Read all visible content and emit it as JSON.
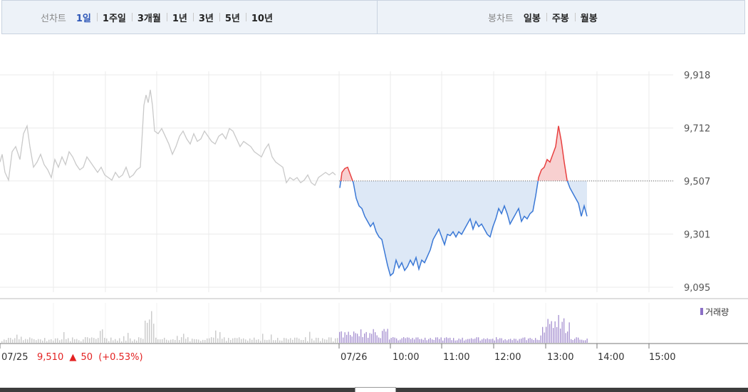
{
  "tabs": {
    "line_chart_label": "선차트",
    "periods": [
      "1일",
      "1주일",
      "3개월",
      "1년",
      "3년",
      "5년",
      "10년"
    ],
    "active_period": 0,
    "candle_chart_label": "봉차트",
    "candle_periods": [
      "일봉",
      "주봉",
      "월봉"
    ]
  },
  "chart_data": {
    "type": "line",
    "y_ticks": [
      "9,918",
      "9,712",
      "9,507",
      "9,301",
      "9,095"
    ],
    "ylim": [
      9095,
      9918
    ],
    "x_labels": [
      "07/25",
      "07/26",
      "10:00",
      "11:00",
      "12:00",
      "13:00",
      "14:00",
      "15:00"
    ],
    "baseline": 9507,
    "volume_legend": "거래량",
    "prev_day_summary": {
      "date": "07/25",
      "price": "9,510",
      "arrow": "▲",
      "change": "50",
      "change_pct": "(+0.53%)"
    },
    "colors": {
      "up": "#e84040",
      "down": "#3a78d6",
      "fill_down": "#dde8f6",
      "fill_up": "#f8d0d0",
      "prev_line": "#c9c9c9",
      "volume_today": "#a58fd0",
      "volume_prev": "#cccccc",
      "summary_red": "#e32222"
    },
    "series": [
      {
        "day": "07/25",
        "x": [
          0,
          3,
          7,
          12,
          17,
          22,
          28,
          33,
          38,
          42,
          47,
          52,
          57,
          62,
          67,
          72,
          77,
          82,
          87,
          92,
          97,
          102,
          107,
          112,
          117,
          122,
          127,
          132,
          137,
          142,
          147,
          152,
          157,
          162,
          167,
          172,
          177,
          182,
          187,
          192,
          197,
          202,
          205,
          208,
          211,
          214,
          217,
          222,
          227,
          232,
          237,
          242,
          247,
          252,
          257,
          262,
          267,
          272,
          277,
          282,
          287,
          292,
          297,
          302,
          307,
          312,
          317,
          322,
          327,
          332,
          337,
          342,
          347,
          352,
          357,
          362,
          367,
          372,
          377,
          382,
          387,
          392,
          397,
          402,
          407,
          412,
          417,
          422,
          427,
          432,
          437,
          442,
          447,
          452,
          457,
          462,
          467,
          471
        ],
        "values": [
          9580,
          9610,
          9540,
          9510,
          9620,
          9640,
          9590,
          9690,
          9720,
          9640,
          9560,
          9580,
          9610,
          9570,
          9550,
          9520,
          9590,
          9560,
          9600,
          9570,
          9620,
          9600,
          9570,
          9550,
          9560,
          9600,
          9580,
          9560,
          9540,
          9560,
          9530,
          9520,
          9510,
          9540,
          9520,
          9530,
          9560,
          9520,
          9530,
          9550,
          9560,
          9800,
          9840,
          9810,
          9860,
          9800,
          9700,
          9690,
          9710,
          9680,
          9650,
          9610,
          9640,
          9680,
          9700,
          9670,
          9650,
          9690,
          9660,
          9670,
          9700,
          9680,
          9660,
          9650,
          9680,
          9690,
          9670,
          9710,
          9700,
          9670,
          9640,
          9660,
          9650,
          9640,
          9620,
          9610,
          9600,
          9630,
          9650,
          9600,
          9580,
          9570,
          9560,
          9500,
          9520,
          9510,
          9520,
          9500,
          9510,
          9530,
          9500,
          9490,
          9520,
          9530,
          9540,
          9530,
          9540,
          9530
        ]
      },
      {
        "day": "07/26",
        "x": [
          477,
          480,
          484,
          488,
          492,
          496,
          500,
          504,
          508,
          512,
          516,
          520,
          524,
          528,
          532,
          536,
          540,
          544,
          548,
          552,
          556,
          560,
          564,
          568,
          572,
          576,
          580,
          584,
          588,
          592,
          596,
          600,
          604,
          608,
          612,
          616,
          620,
          624,
          628,
          632,
          636,
          640,
          644,
          648,
          652,
          656,
          660,
          664,
          668,
          672,
          676,
          680,
          684,
          688,
          692,
          696,
          700,
          704,
          708,
          712,
          716,
          720,
          724,
          728,
          732,
          736,
          740,
          744,
          748,
          752,
          756,
          760,
          764,
          768,
          772,
          776,
          780,
          784,
          788,
          792,
          796,
          800,
          804,
          808,
          812,
          816,
          820,
          824
        ],
        "values": [
          9480,
          9540,
          9555,
          9560,
          9530,
          9500,
          9440,
          9410,
          9400,
          9370,
          9350,
          9330,
          9345,
          9310,
          9290,
          9280,
          9230,
          9180,
          9140,
          9150,
          9200,
          9170,
          9190,
          9160,
          9175,
          9200,
          9180,
          9210,
          9165,
          9200,
          9190,
          9215,
          9240,
          9280,
          9300,
          9320,
          9290,
          9260,
          9300,
          9295,
          9310,
          9290,
          9310,
          9300,
          9320,
          9340,
          9360,
          9320,
          9350,
          9330,
          9340,
          9320,
          9300,
          9290,
          9330,
          9360,
          9400,
          9380,
          9410,
          9380,
          9340,
          9360,
          9380,
          9400,
          9350,
          9370,
          9360,
          9380,
          9390,
          9450,
          9520,
          9550,
          9560,
          9590,
          9580,
          9610,
          9640,
          9720,
          9660,
          9580,
          9510,
          9480,
          9460,
          9440,
          9420,
          9370,
          9410,
          9370
        ]
      }
    ]
  }
}
